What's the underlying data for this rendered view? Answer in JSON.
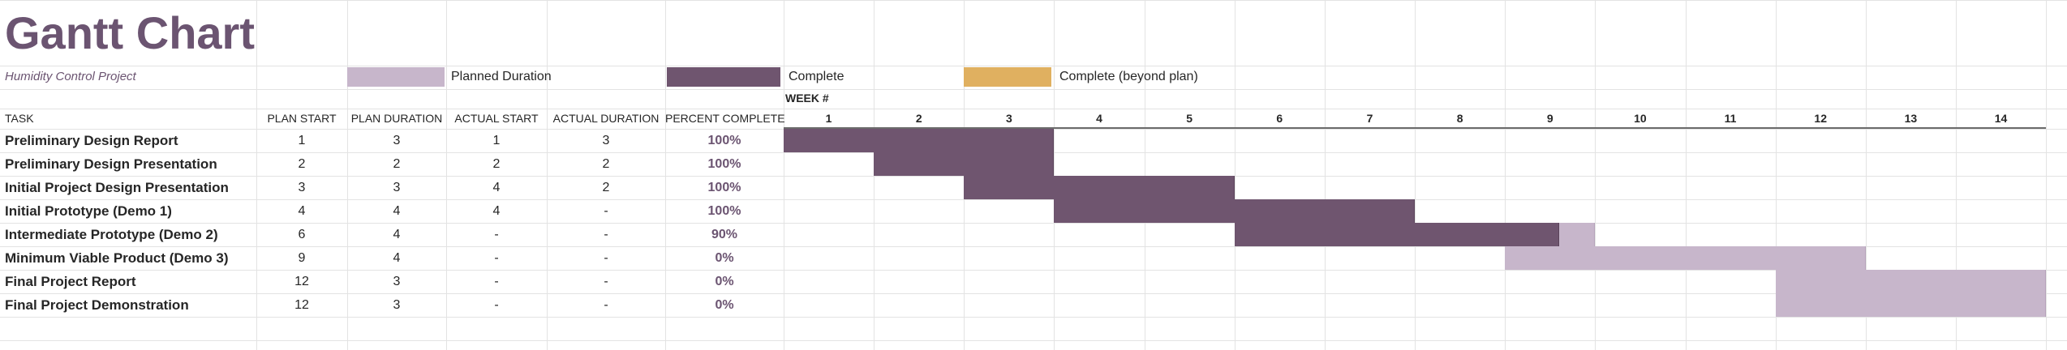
{
  "title": "Gantt Chart",
  "subtitle": "Humidity Control Project",
  "legend": [
    {
      "label": "Planned Duration",
      "color": "#c7b6cb"
    },
    {
      "label": "Complete",
      "color": "#6f556f"
    },
    {
      "label": "Complete (beyond plan)",
      "color": "#e0b060"
    }
  ],
  "week_label": "WEEK #",
  "headers": {
    "task": "TASK",
    "plan_start": "PLAN START",
    "plan_duration": "PLAN DURATION",
    "actual_start": "ACTUAL START",
    "actual_duration": "ACTUAL DURATION",
    "percent_complete": "PERCENT COMPLETE"
  },
  "chart_data": {
    "type": "table",
    "weeks": [
      1,
      2,
      3,
      4,
      5,
      6,
      7,
      8,
      9,
      10,
      11,
      12,
      13,
      14
    ],
    "tasks": [
      {
        "task": "Preliminary Design Report",
        "plan_start": "1",
        "plan_duration": "3",
        "actual_start": "1",
        "actual_duration": "3",
        "percent_complete": "100%",
        "percent_value": 100
      },
      {
        "task": "Preliminary Design Presentation",
        "plan_start": "2",
        "plan_duration": "2",
        "actual_start": "2",
        "actual_duration": "2",
        "percent_complete": "100%",
        "percent_value": 100
      },
      {
        "task": "Initial Project Design Presentation",
        "plan_start": "3",
        "plan_duration": "3",
        "actual_start": "4",
        "actual_duration": "2",
        "percent_complete": "100%",
        "percent_value": 100
      },
      {
        "task": "Initial Prototype (Demo 1)",
        "plan_start": "4",
        "plan_duration": "4",
        "actual_start": "4",
        "actual_duration": "-",
        "percent_complete": "100%",
        "percent_value": 100
      },
      {
        "task": "Intermediate Prototype (Demo 2)",
        "plan_start": "6",
        "plan_duration": "4",
        "actual_start": "-",
        "actual_duration": "-",
        "percent_complete": "90%",
        "percent_value": 90
      },
      {
        "task": "Minimum Viable Product (Demo 3)",
        "plan_start": "9",
        "plan_duration": "4",
        "actual_start": "-",
        "actual_duration": "-",
        "percent_complete": "0%",
        "percent_value": 0
      },
      {
        "task": "Final Project Report",
        "plan_start": "12",
        "plan_duration": "3",
        "actual_start": "-",
        "actual_duration": "-",
        "percent_complete": "0%",
        "percent_value": 0
      },
      {
        "task": "Final Project Demonstration",
        "plan_start": "12",
        "plan_duration": "3",
        "actual_start": "-",
        "actual_duration": "-",
        "percent_complete": "0%",
        "percent_value": 0
      }
    ]
  }
}
